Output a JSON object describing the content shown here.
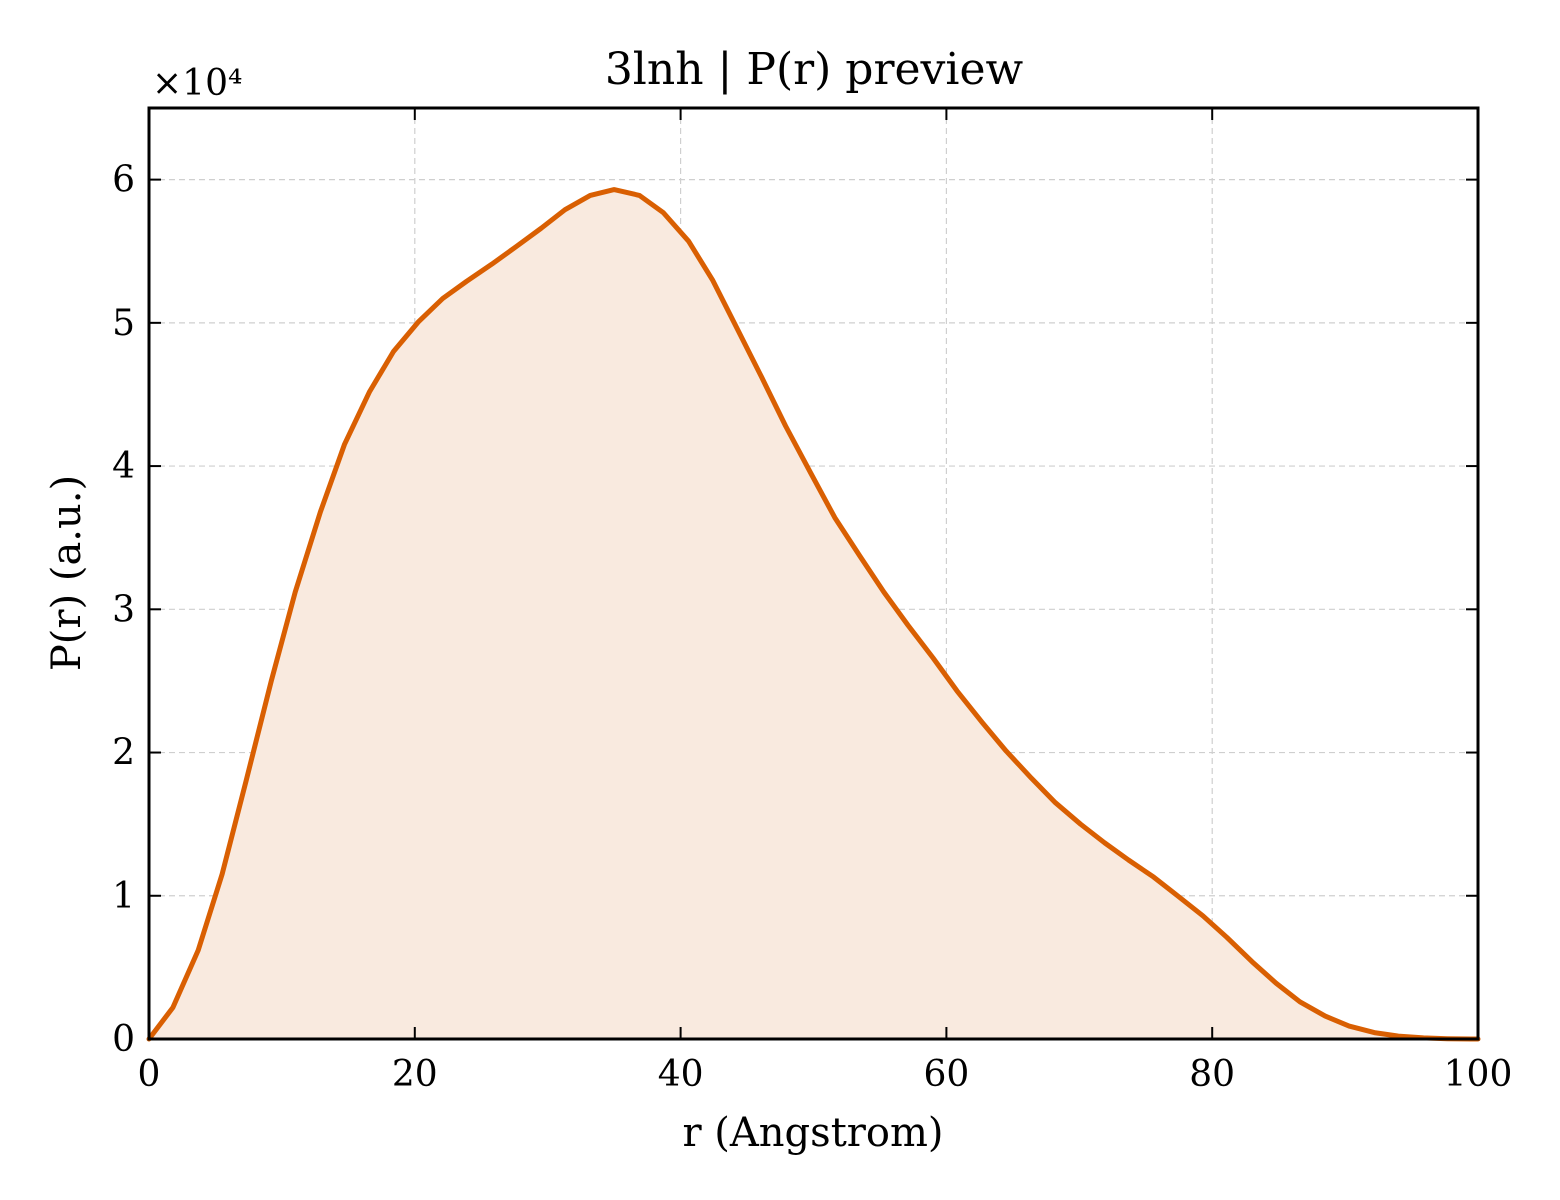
{
  "chart_data": {
    "type": "area",
    "title": "3lnh | P(r) preview",
    "xlabel": "r (Angstrom)",
    "ylabel": "P(r) (a.u.)",
    "y_multiplier_label": "×10⁴",
    "xlim": [
      0,
      100
    ],
    "ylim": [
      0,
      6.5
    ],
    "xticks": [
      0,
      20,
      40,
      60,
      80,
      100
    ],
    "yticks": [
      0,
      1,
      2,
      3,
      4,
      5,
      6
    ],
    "grid": true,
    "colors": {
      "line": "#d95f02",
      "fill": "#f9eadf"
    },
    "x": [
      0,
      1.8,
      3.7,
      5.5,
      7.3,
      9.2,
      11.0,
      12.9,
      14.7,
      16.6,
      18.4,
      20.3,
      22.1,
      23.9,
      25.8,
      27.6,
      29.5,
      31.3,
      33.2,
      35.0,
      36.9,
      38.7,
      40.6,
      42.4,
      44.2,
      46.1,
      47.9,
      49.8,
      51.6,
      53.5,
      55.3,
      57.1,
      59.0,
      60.8,
      62.7,
      64.5,
      66.4,
      68.2,
      70.1,
      71.9,
      73.7,
      75.6,
      77.4,
      79.3,
      81.1,
      83.0,
      84.8,
      86.6,
      88.5,
      90.3,
      92.2,
      94.0,
      95.9,
      97.7,
      99.5,
      100
    ],
    "y": [
      0,
      0.22,
      0.62,
      1.15,
      1.8,
      2.5,
      3.12,
      3.68,
      4.15,
      4.52,
      4.8,
      5.01,
      5.17,
      5.29,
      5.41,
      5.53,
      5.66,
      5.79,
      5.89,
      5.93,
      5.89,
      5.77,
      5.57,
      5.3,
      4.97,
      4.62,
      4.28,
      3.95,
      3.64,
      3.37,
      3.12,
      2.89,
      2.66,
      2.43,
      2.21,
      2.01,
      1.82,
      1.65,
      1.5,
      1.37,
      1.25,
      1.13,
      1.0,
      0.86,
      0.71,
      0.54,
      0.39,
      0.26,
      0.16,
      0.09,
      0.045,
      0.02,
      0.008,
      0.002,
      0.0,
      0.0
    ],
    "series": [
      {
        "values_ref": "y"
      }
    ]
  }
}
